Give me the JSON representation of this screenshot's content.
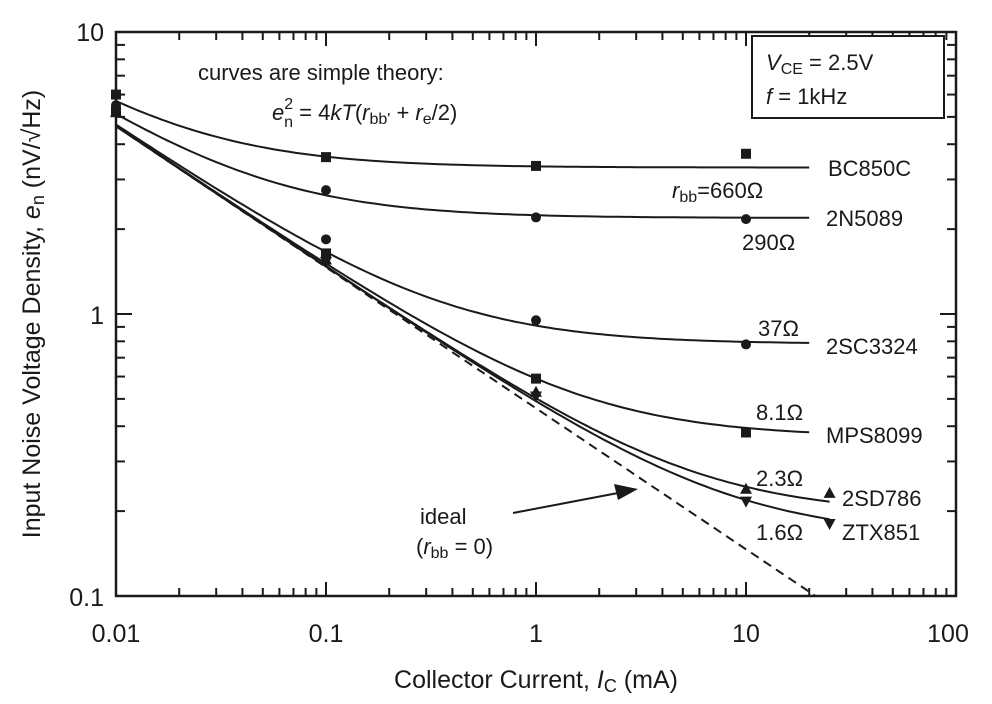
{
  "chart_data": {
    "type": "line",
    "xscale": "log",
    "yscale": "log",
    "xlim": [
      0.01,
      100
    ],
    "ylim": [
      0.1,
      10
    ],
    "xlabel": "Collector Current, I_C (mA)",
    "xlabel_parts": {
      "pre": "Collector Current, ",
      "var": "I",
      "sub": "C",
      "post": " (mA)"
    },
    "ylabel": "Input Noise Voltage Density, e_n (nV/√Hz)",
    "ylabel_parts": {
      "pre": "Input Noise Voltage Density, ",
      "var": "e",
      "sub": "n",
      "post": " (nV/√Hz)"
    },
    "x_ticks": [
      "0.01",
      "0.1",
      "1",
      "10",
      "100"
    ],
    "x_tick_values": [
      0.01,
      0.1,
      1,
      10,
      100
    ],
    "y_ticks": [
      "10",
      "1",
      "0.1"
    ],
    "y_tick_values": [
      10,
      1,
      0.1
    ],
    "annotation_theory": "curves are simple theory:",
    "equation": {
      "lhs_var": "e",
      "lhs_sup": "2",
      "lhs_sub": "n",
      "mid": " = 4",
      "k": "k",
      "T": "T",
      "open": "(",
      "r1": "r",
      "r1_sub": "bb'",
      "plus": " + ",
      "r2": "r",
      "r2_sub": "e",
      "tail": "/2)"
    },
    "conditions": {
      "vce_var": "V",
      "vce_sub": "CE",
      "vce_val": " = 2.5V",
      "f_var": "f",
      "f_val": " = 1kHz"
    },
    "ideal_label": "ideal",
    "ideal_sub_label": {
      "open": "(",
      "var": "r",
      "sub": "bb",
      "val": " = 0)"
    },
    "ideal_rbb_ohms": 0,
    "ideal_range": [
      0.01,
      21.4
    ],
    "series": [
      {
        "name": "BC850C",
        "rbb_label": "660Ω",
        "rbb_prefix": "r",
        "rbb_sub": "bb",
        "rbb_eq": "=",
        "rbb_ohms": 660,
        "marker": "square",
        "curve_range": [
          0.01,
          20
        ],
        "points": [
          [
            0.01,
            6.0
          ],
          [
            0.1,
            3.6
          ],
          [
            1,
            3.35
          ],
          [
            10,
            3.7
          ]
        ]
      },
      {
        "name": "2N5089",
        "rbb_label": "290Ω",
        "rbb_ohms": 290,
        "marker": "circle",
        "curve_range": [
          0.01,
          20
        ],
        "points": [
          [
            0.01,
            5.4
          ],
          [
            0.1,
            2.75
          ],
          [
            1,
            2.2
          ],
          [
            10,
            2.17
          ]
        ]
      },
      {
        "name": "2SC3324",
        "rbb_label": "37Ω",
        "rbb_ohms": 37,
        "marker": "circle",
        "curve_range": [
          0.01,
          20
        ],
        "points": [
          [
            0.01,
            5.5
          ],
          [
            0.1,
            1.84
          ],
          [
            1,
            0.95
          ],
          [
            10,
            0.78
          ]
        ]
      },
      {
        "name": "MPS8099",
        "rbb_label": "8.1Ω",
        "rbb_ohms": 8.1,
        "marker": "square",
        "curve_range": [
          0.01,
          20
        ],
        "points": [
          [
            0.01,
            5.2
          ],
          [
            0.1,
            1.64
          ],
          [
            1,
            0.59
          ],
          [
            10,
            0.38
          ]
        ]
      },
      {
        "name": "2SD786",
        "rbb_label": "2.3Ω",
        "rbb_ohms": 2.3,
        "marker": "triangle-up",
        "curve_range": [
          0.01,
          25
        ],
        "points": [
          [
            0.01,
            5.2
          ],
          [
            0.1,
            1.56
          ],
          [
            1,
            0.53
          ],
          [
            10,
            0.24
          ],
          [
            25,
            0.232
          ]
        ]
      },
      {
        "name": "ZTX851",
        "rbb_label": "1.6Ω",
        "rbb_ohms": 1.6,
        "marker": "triangle-down",
        "curve_range": [
          0.01,
          25
        ],
        "points": [
          [
            0.1,
            1.53
          ],
          [
            1,
            0.51
          ],
          [
            10,
            0.216
          ],
          [
            25,
            0.18
          ]
        ]
      }
    ],
    "colors": {
      "ink": "#1a1a1a",
      "background": "#ffffff"
    }
  }
}
